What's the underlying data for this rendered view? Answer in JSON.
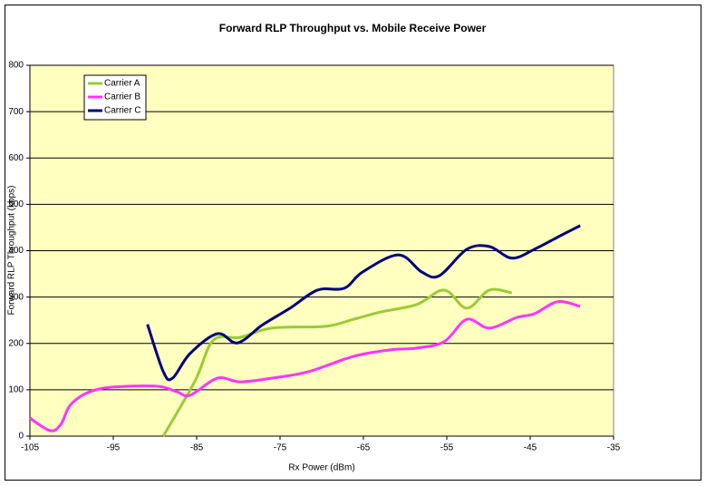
{
  "chart_data": {
    "type": "line",
    "title": "Forward RLP Throughput vs. Mobile Receive Power",
    "x_label": "Rx Power (dBm)",
    "y_label": "Forward RLP Throughput (kbps)",
    "xlim": [
      -105,
      -35
    ],
    "xticks": [
      -105,
      -95,
      -85,
      -75,
      -65,
      -55,
      -45,
      -35
    ],
    "ylim": [
      0,
      800
    ],
    "yticks": [
      0,
      100,
      200,
      300,
      400,
      500,
      600,
      700,
      800
    ],
    "grid": true,
    "legend": "upper left",
    "series": [
      {
        "name": "Carrier A",
        "color": "#99cc33",
        "x": [
          -89.0,
          -85.2,
          -83.0,
          -79.8,
          -76.0,
          -69.5,
          -66.2,
          -62.9,
          -58.6,
          -55.3,
          -52.6,
          -49.9,
          -47.2
        ],
        "values": [
          0,
          119,
          207,
          213,
          233,
          237,
          252,
          268,
          284,
          315,
          276,
          315,
          309
        ]
      },
      {
        "name": "Carrier B",
        "color": "#ff33ff",
        "x": [
          -105,
          -102.6,
          -101.3,
          -99.9,
          -96.6,
          -90.1,
          -87.4,
          -85.8,
          -82.5,
          -79.8,
          -76.0,
          -71.6,
          -66.2,
          -61.8,
          -58.6,
          -55.3,
          -52.6,
          -49.9,
          -46.6,
          -44.5,
          -41.7,
          -39.0
        ],
        "values": [
          39,
          12,
          25,
          72,
          102,
          108,
          96,
          88,
          125,
          117,
          125,
          139,
          172,
          186,
          190,
          204,
          252,
          233,
          256,
          264,
          290,
          280
        ]
      },
      {
        "name": "Carrier C",
        "color": "#000080",
        "x": [
          -90.9,
          -89.0,
          -87.9,
          -85.8,
          -82.5,
          -80.1,
          -77.1,
          -73.8,
          -70.5,
          -67.3,
          -65.1,
          -60.8,
          -58.0,
          -55.9,
          -52.6,
          -49.9,
          -47.2,
          -44.5,
          -41.2,
          -39.0
        ],
        "values": [
          241,
          139,
          125,
          178,
          221,
          201,
          240,
          276,
          315,
          319,
          354,
          391,
          354,
          346,
          403,
          409,
          384,
          403,
          434,
          454
        ]
      }
    ]
  }
}
